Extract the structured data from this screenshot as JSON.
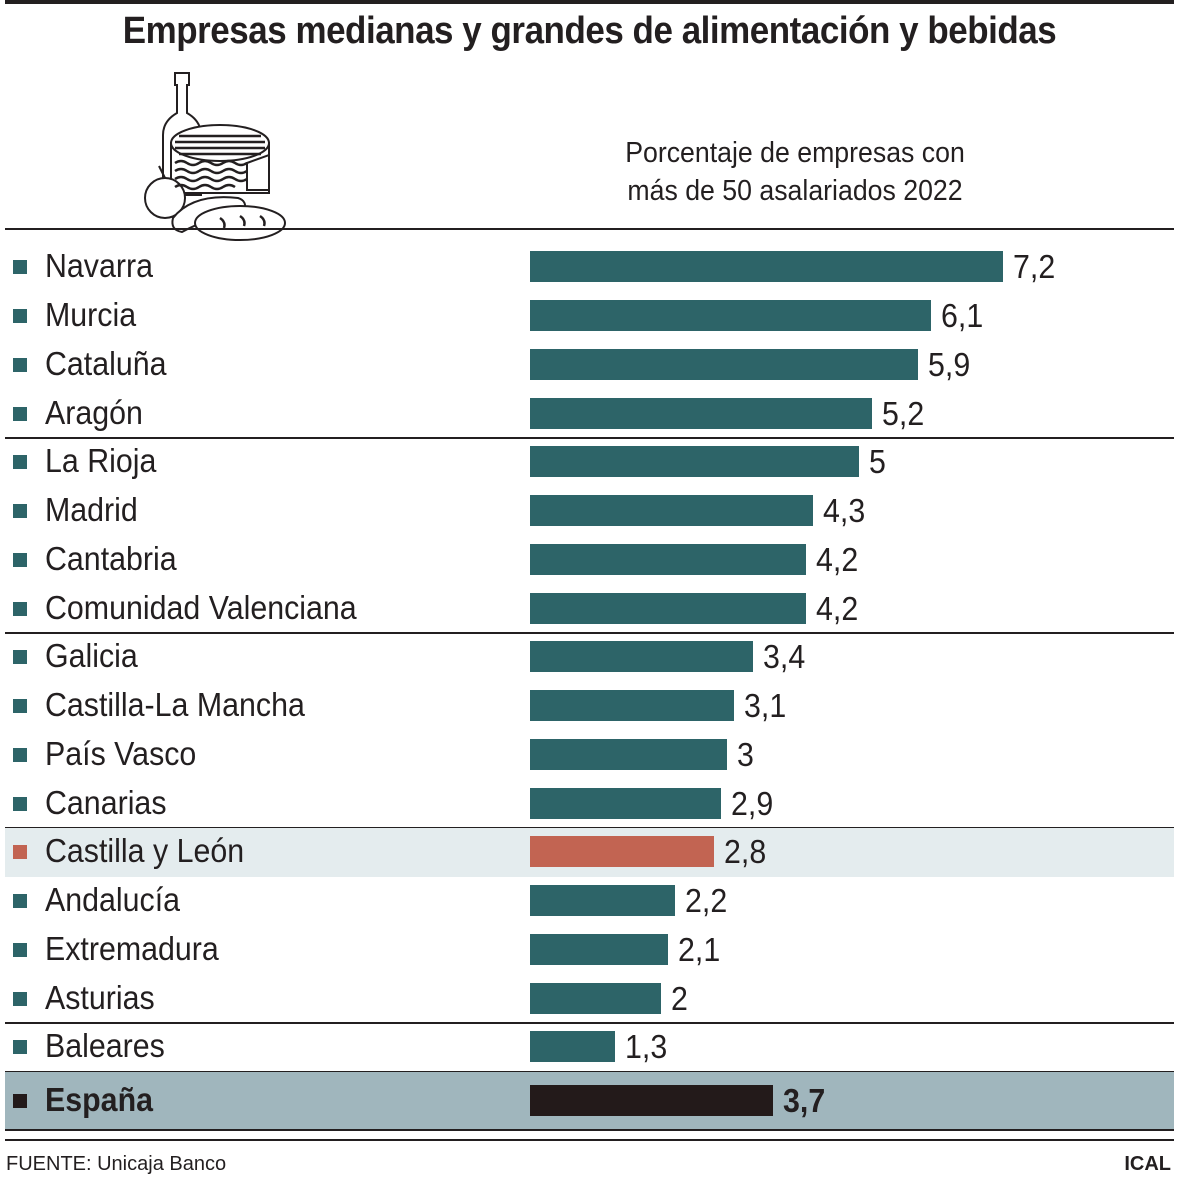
{
  "title": "Empresas medianas y grandes de alimentación y bebidas",
  "source": "FUENTE: Unicaja Banco",
  "credit": "ICAL",
  "illustration": "food-and-drink-icon",
  "colors": {
    "default": "#2d6468",
    "highlight": "#c26452",
    "total": "#231a1a",
    "highlight_bg": "#e4ecee",
    "total_bg": "#a0b6bd"
  },
  "chart_data": {
    "type": "bar",
    "orientation": "horizontal",
    "title": "Porcentaje de empresas con más de 50 asalariados 2022",
    "subtitle_lines": [
      "Porcentaje de empresas con",
      "más de 50 asalariados 2022"
    ],
    "categories": [
      "Navarra",
      "Murcia",
      "Cataluña",
      "Aragón",
      "La Rioja",
      "Madrid",
      "Cantabria",
      "Comunidad Valenciana",
      "Galicia",
      "Castilla-La Mancha",
      "País Vasco",
      "Canarias",
      "Castilla y León",
      "Andalucía",
      "Extremadura",
      "Asturias",
      "Baleares",
      "España"
    ],
    "values": [
      7.2,
      6.1,
      5.9,
      5.2,
      5,
      4.3,
      4.2,
      4.2,
      3.4,
      3.1,
      3,
      2.9,
      2.8,
      2.2,
      2.1,
      2,
      1.3,
      3.7
    ],
    "value_labels": [
      "7,2",
      "6,1",
      "5,9",
      "5,2",
      "5",
      "4,3",
      "4,2",
      "4,2",
      "3,4",
      "3,1",
      "3",
      "2,9",
      "2,8",
      "2,2",
      "2,1",
      "2",
      "1,3",
      "3,7"
    ],
    "highlight": "Castilla y León",
    "total": "España",
    "grid": false
  }
}
